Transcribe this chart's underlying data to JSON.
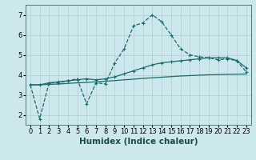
{
  "xlabel": "Humidex (Indice chaleur)",
  "ylabel": "",
  "bg_color": "#cce8ec",
  "grid_color": "#b8d4d8",
  "line_color": "#1a6b6b",
  "xlim": [
    -0.5,
    23.5
  ],
  "ylim": [
    1.5,
    7.5
  ],
  "xticks": [
    0,
    1,
    2,
    3,
    4,
    5,
    6,
    7,
    8,
    9,
    10,
    11,
    12,
    13,
    14,
    15,
    16,
    17,
    18,
    19,
    20,
    21,
    22,
    23
  ],
  "yticks": [
    2,
    3,
    4,
    5,
    6,
    7
  ],
  "line1_x": [
    0,
    1,
    2,
    3,
    4,
    5,
    6,
    7,
    8,
    9,
    10,
    11,
    12,
    13,
    14,
    15,
    16,
    17,
    18,
    19,
    20,
    21,
    22,
    23
  ],
  "line1_y": [
    3.5,
    1.8,
    3.6,
    3.6,
    3.7,
    3.8,
    2.55,
    3.6,
    3.55,
    4.6,
    5.3,
    6.45,
    6.6,
    7.0,
    6.65,
    6.0,
    5.3,
    5.0,
    4.9,
    4.85,
    4.75,
    4.8,
    4.7,
    4.15
  ],
  "line2_x": [
    0,
    1,
    2,
    3,
    4,
    5,
    6,
    7,
    8,
    9,
    10,
    11,
    12,
    13,
    14,
    15,
    16,
    17,
    18,
    19,
    20,
    21,
    22,
    23
  ],
  "line2_y": [
    3.5,
    3.5,
    3.6,
    3.65,
    3.7,
    3.75,
    3.8,
    3.75,
    3.8,
    3.9,
    4.05,
    4.2,
    4.35,
    4.5,
    4.6,
    4.65,
    4.7,
    4.75,
    4.8,
    4.85,
    4.85,
    4.85,
    4.72,
    4.35
  ],
  "line3_x": [
    0,
    1,
    2,
    3,
    4,
    5,
    6,
    7,
    8,
    9,
    10,
    11,
    12,
    13,
    14,
    15,
    16,
    17,
    18,
    19,
    20,
    21,
    22,
    23
  ],
  "line3_y": [
    3.5,
    3.5,
    3.52,
    3.54,
    3.57,
    3.6,
    3.62,
    3.65,
    3.68,
    3.71,
    3.75,
    3.78,
    3.82,
    3.85,
    3.88,
    3.91,
    3.94,
    3.96,
    3.98,
    4.0,
    4.01,
    4.02,
    4.03,
    4.04
  ],
  "tick_fontsize": 6.0,
  "xlabel_fontsize": 7.5
}
